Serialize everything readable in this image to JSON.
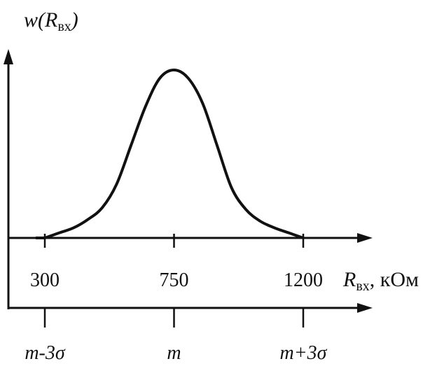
{
  "chart_data": {
    "type": "line",
    "title": "",
    "ylabel": {
      "main": "w(R",
      "sub": "вх",
      "close": ")"
    },
    "xlabel": {
      "main": "R",
      "sub": "вх",
      "unit": ", кОм"
    },
    "x_ticks": [
      300,
      750,
      1200
    ],
    "sigma_axis_labels": [
      {
        "x": 300,
        "text": "m-3σ"
      },
      {
        "x": 750,
        "text": "m"
      },
      {
        "x": 1200,
        "text": "m+3σ"
      }
    ],
    "xlim": [
      210,
      1300
    ],
    "ylim": [
      0,
      1.05
    ],
    "series": [
      {
        "points": [
          [
            300,
            0.0
          ],
          [
            350,
            0.03
          ],
          [
            400,
            0.06
          ],
          [
            450,
            0.11
          ],
          [
            500,
            0.18
          ],
          [
            550,
            0.32
          ],
          [
            600,
            0.55
          ],
          [
            650,
            0.78
          ],
          [
            700,
            0.95
          ],
          [
            750,
            1.0
          ],
          [
            800,
            0.95
          ],
          [
            850,
            0.8
          ],
          [
            900,
            0.55
          ],
          [
            950,
            0.3
          ],
          [
            1000,
            0.17
          ],
          [
            1050,
            0.1
          ],
          [
            1100,
            0.06
          ],
          [
            1150,
            0.03
          ],
          [
            1200,
            0.0
          ]
        ]
      }
    ]
  }
}
